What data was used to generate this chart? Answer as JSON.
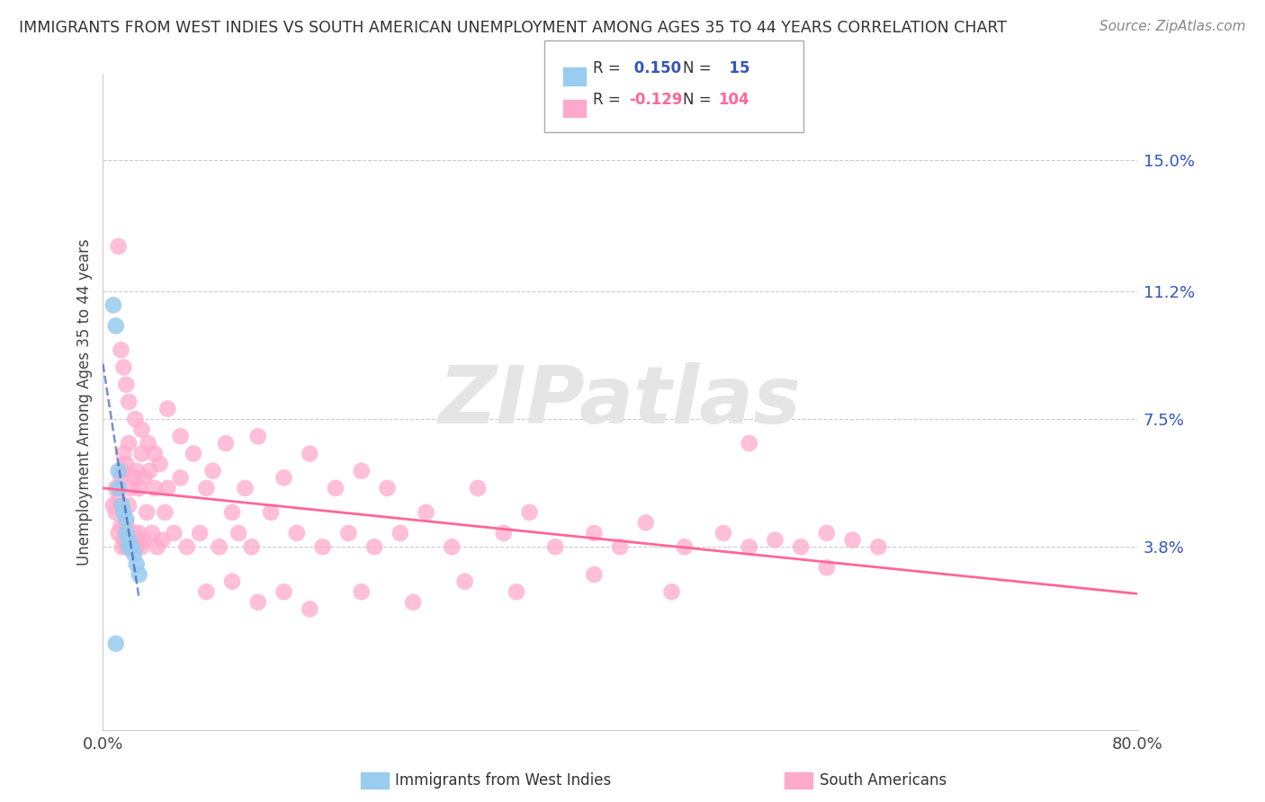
{
  "title": "IMMIGRANTS FROM WEST INDIES VS SOUTH AMERICAN UNEMPLOYMENT AMONG AGES 35 TO 44 YEARS CORRELATION CHART",
  "source": "Source: ZipAtlas.com",
  "ylabel": "Unemployment Among Ages 35 to 44 years",
  "xlim": [
    0.0,
    0.8
  ],
  "ylim": [
    -0.015,
    0.175
  ],
  "xtick_labels": [
    "0.0%",
    "80.0%"
  ],
  "xtick_positions": [
    0.0,
    0.8
  ],
  "ytick_labels": [
    "3.8%",
    "7.5%",
    "11.2%",
    "15.0%"
  ],
  "ytick_positions": [
    0.038,
    0.075,
    0.112,
    0.15
  ],
  "background_color": "#ffffff",
  "grid_color": "#cccccc",
  "west_indies_dot_color": "#99CCEE",
  "south_american_dot_color": "#FFAACC",
  "west_indies_line_color": "#3355BB",
  "south_american_line_color": "#FF6699",
  "watermark": "ZIPatlas",
  "R_blue": 0.15,
  "N_blue": 15,
  "R_pink": -0.129,
  "N_pink": 104,
  "wi_x": [
    0.008,
    0.01,
    0.012,
    0.012,
    0.015,
    0.016,
    0.018,
    0.018,
    0.02,
    0.02,
    0.022,
    0.024,
    0.026,
    0.028,
    0.01
  ],
  "wi_y": [
    0.108,
    0.102,
    0.06,
    0.055,
    0.05,
    0.048,
    0.046,
    0.042,
    0.04,
    0.038,
    0.038,
    0.036,
    0.033,
    0.03,
    0.01
  ],
  "sa_x": [
    0.008,
    0.01,
    0.01,
    0.012,
    0.012,
    0.014,
    0.014,
    0.015,
    0.015,
    0.016,
    0.016,
    0.018,
    0.018,
    0.018,
    0.02,
    0.02,
    0.02,
    0.022,
    0.022,
    0.024,
    0.024,
    0.026,
    0.026,
    0.028,
    0.028,
    0.03,
    0.03,
    0.032,
    0.032,
    0.034,
    0.036,
    0.038,
    0.04,
    0.042,
    0.044,
    0.046,
    0.048,
    0.05,
    0.055,
    0.06,
    0.065,
    0.07,
    0.075,
    0.08,
    0.085,
    0.09,
    0.095,
    0.1,
    0.105,
    0.11,
    0.115,
    0.12,
    0.13,
    0.14,
    0.15,
    0.16,
    0.17,
    0.18,
    0.19,
    0.2,
    0.21,
    0.22,
    0.23,
    0.25,
    0.27,
    0.29,
    0.31,
    0.33,
    0.35,
    0.38,
    0.4,
    0.42,
    0.45,
    0.48,
    0.5,
    0.52,
    0.54,
    0.56,
    0.58,
    0.6,
    0.012,
    0.014,
    0.016,
    0.018,
    0.02,
    0.025,
    0.03,
    0.035,
    0.04,
    0.05,
    0.06,
    0.08,
    0.1,
    0.12,
    0.14,
    0.16,
    0.2,
    0.24,
    0.28,
    0.32,
    0.38,
    0.44,
    0.5,
    0.56
  ],
  "sa_y": [
    0.05,
    0.055,
    0.048,
    0.052,
    0.042,
    0.058,
    0.044,
    0.06,
    0.038,
    0.065,
    0.04,
    0.062,
    0.038,
    0.045,
    0.068,
    0.038,
    0.05,
    0.055,
    0.038,
    0.058,
    0.042,
    0.06,
    0.038,
    0.055,
    0.042,
    0.065,
    0.038,
    0.058,
    0.04,
    0.048,
    0.06,
    0.042,
    0.055,
    0.038,
    0.062,
    0.04,
    0.048,
    0.055,
    0.042,
    0.058,
    0.038,
    0.065,
    0.042,
    0.055,
    0.06,
    0.038,
    0.068,
    0.048,
    0.042,
    0.055,
    0.038,
    0.07,
    0.048,
    0.058,
    0.042,
    0.065,
    0.038,
    0.055,
    0.042,
    0.06,
    0.038,
    0.055,
    0.042,
    0.048,
    0.038,
    0.055,
    0.042,
    0.048,
    0.038,
    0.042,
    0.038,
    0.045,
    0.038,
    0.042,
    0.038,
    0.04,
    0.038,
    0.042,
    0.04,
    0.038,
    0.125,
    0.095,
    0.09,
    0.085,
    0.08,
    0.075,
    0.072,
    0.068,
    0.065,
    0.078,
    0.07,
    0.025,
    0.028,
    0.022,
    0.025,
    0.02,
    0.025,
    0.022,
    0.028,
    0.025,
    0.03,
    0.025,
    0.068,
    0.032
  ]
}
